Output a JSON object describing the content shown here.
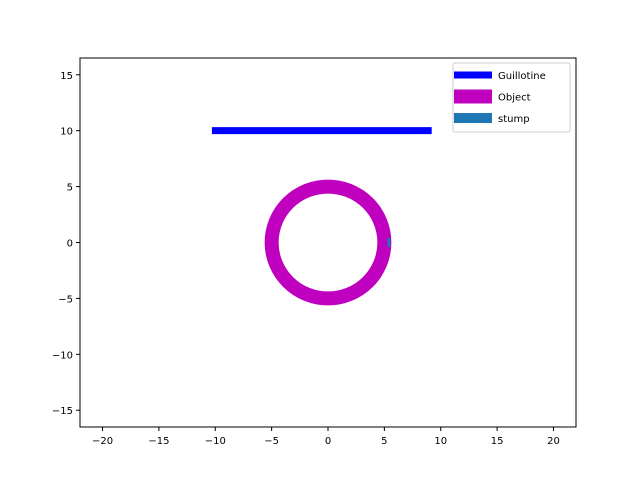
{
  "chart_data": {
    "type": "line",
    "title": "",
    "xlabel": "",
    "ylabel": "",
    "xlim": [
      -22,
      22
    ],
    "ylim": [
      -16.5,
      16.5
    ],
    "xticks": [
      -20,
      -15,
      -10,
      -5,
      0,
      5,
      10,
      15,
      20
    ],
    "yticks": [
      -15,
      -10,
      -5,
      0,
      5,
      10,
      15
    ],
    "xtick_labels": [
      "−20",
      "−15",
      "−10",
      "−5",
      "0",
      "5",
      "10",
      "15",
      "20"
    ],
    "ytick_labels": [
      "−15",
      "−10",
      "−5",
      "0",
      "5",
      "10",
      "15"
    ],
    "grid": false,
    "legend_position": "top-right",
    "series": [
      {
        "name": "Guillotine",
        "kind": "line",
        "color": "#0000ff",
        "x": [
          -10.3,
          9.2
        ],
        "y": [
          10.0,
          10.0
        ]
      },
      {
        "name": "Object",
        "kind": "circle",
        "color": "#bf00bf",
        "center": [
          0,
          0
        ],
        "radius": 5.0
      },
      {
        "name": "stump",
        "kind": "line",
        "color": "#1f77b4",
        "x": [
          5.4,
          5.4
        ],
        "y": [
          -0.4,
          0.4
        ]
      }
    ]
  }
}
